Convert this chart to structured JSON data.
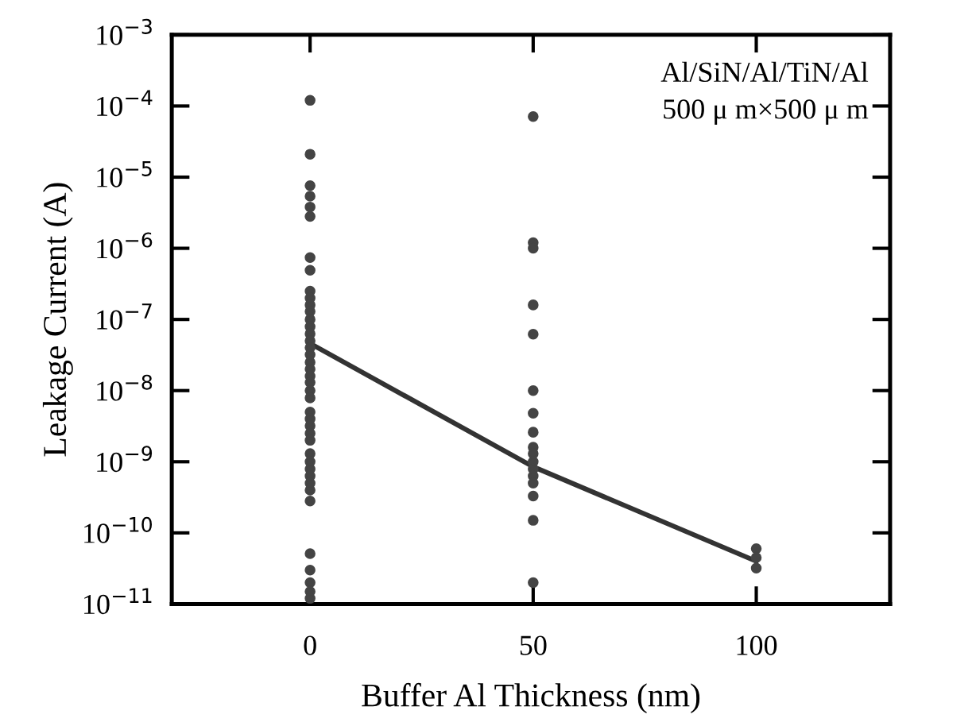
{
  "chart_data": {
    "type": "scatter",
    "xlabel": "Buffer Al Thickness (nm)",
    "ylabel": "Leakage Current (A)",
    "annotations": [
      "Al/SiN/Al/TiN/Al",
      "500 μ m×500 μ m"
    ],
    "log": "y",
    "xlim": [
      -31,
      130
    ],
    "xticks": [
      0,
      50,
      100
    ],
    "ylim": [
      1e-11,
      0.001
    ],
    "yticks": [
      {
        "value": 1e-11,
        "label": "10$^{−11}$"
      },
      {
        "value": 1e-10,
        "label": "10$^{−10}$"
      },
      {
        "value": 1e-09,
        "label": "10$^{−9}$"
      },
      {
        "value": 1e-08,
        "label": "10$^{−8}$"
      },
      {
        "value": 1e-07,
        "label": "10$^{−7}$"
      },
      {
        "value": 1e-06,
        "label": "10$^{−6}$"
      },
      {
        "value": 1e-05,
        "label": "10$^{−5}$"
      },
      {
        "value": 0.0001,
        "label": "10$^{−4}$"
      },
      {
        "value": 0.001,
        "label": "10$^{−3}$"
      }
    ],
    "grid": false,
    "legend": false,
    "series": [
      {
        "color": "#444444",
        "marker": "circle",
        "x": [
          0,
          0,
          0,
          0,
          0,
          0,
          0,
          0,
          0,
          0,
          0,
          0,
          0,
          0,
          0,
          0,
          0,
          0,
          0,
          0,
          0,
          0,
          0,
          0,
          0,
          0,
          0,
          0,
          0,
          0,
          0,
          0,
          0,
          0,
          0,
          0,
          0,
          0,
          0,
          0,
          0
        ],
        "values": [
          0.00012,
          2.1e-05,
          7.6e-06,
          5.4e-06,
          3.8e-06,
          2.8e-06,
          7.4e-07,
          4.9e-07,
          2.5e-07,
          2e-07,
          1.6e-07,
          1.3e-07,
          1e-07,
          7.9e-08,
          6.3e-08,
          5e-08,
          4e-08,
          3.2e-08,
          2.5e-08,
          2e-08,
          1.6e-08,
          1.3e-08,
          1e-08,
          7.9e-09,
          5e-09,
          4e-09,
          3.2e-09,
          2.5e-09,
          2e-09,
          1.3e-09,
          1e-09,
          7.9e-10,
          6.3e-10,
          5e-10,
          4e-10,
          2.8e-10,
          5.1e-11,
          3e-11,
          2e-11,
          1.5e-11,
          1.2e-11
        ]
      },
      {
        "color": "#444444",
        "marker": "circle",
        "x": [
          50,
          50,
          50,
          50,
          50,
          50,
          50,
          50,
          50,
          50,
          50,
          50,
          50,
          50,
          50,
          50,
          50
        ],
        "values": [
          7.1e-05,
          1.2e-06,
          1e-06,
          1.6e-07,
          6.2e-08,
          1e-08,
          4.8e-09,
          2.6e-09,
          1.6e-09,
          1.3e-09,
          1e-09,
          7.9e-10,
          6.3e-10,
          5e-10,
          3.3e-10,
          1.5e-10,
          2e-11
        ]
      },
      {
        "color": "#444444",
        "marker": "circle",
        "x": [
          100,
          100,
          100
        ],
        "values": [
          6e-11,
          4.5e-11,
          3.2e-11
        ]
      },
      {
        "type": "line",
        "color": "#333333",
        "marker": "none",
        "line_style": "solid",
        "x": [
          0,
          50,
          100
        ],
        "values": [
          4.6e-08,
          8.5e-10,
          4e-11
        ]
      }
    ]
  }
}
